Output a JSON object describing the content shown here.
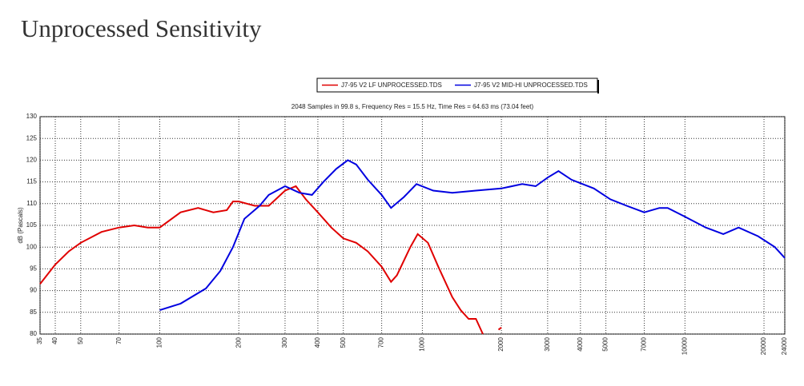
{
  "page_title": "Unprocessed  Sensitivity",
  "chart_data": {
    "type": "line",
    "subtitle": "2048 Samples in 99.8 s, Frequency Res = 15.5 Hz, Time Res = 64.63 ms (73.04 feet)",
    "y_label": "dB (Pascals)",
    "x_scale": "log",
    "grid": true,
    "legend": "top",
    "xlim": [
      35,
      24000
    ],
    "xticks": [
      35,
      40,
      50,
      70,
      100,
      200,
      300,
      400,
      500,
      700,
      1000,
      2000,
      3000,
      4000,
      5000,
      7000,
      10000,
      20000,
      24000
    ],
    "ylim": [
      80,
      130
    ],
    "yticks": [
      80,
      85,
      90,
      95,
      100,
      105,
      110,
      115,
      120,
      125,
      130
    ],
    "series": [
      {
        "name": "J7-95 V2 LF UNPROCESSED.TDS",
        "color": "#e00000",
        "x": [
          35,
          40,
          45,
          50,
          60,
          70,
          80,
          90,
          100,
          120,
          140,
          160,
          180,
          190,
          200,
          230,
          260,
          300,
          330,
          360,
          400,
          450,
          500,
          560,
          620,
          700,
          760,
          800,
          900,
          960,
          1050,
          1150,
          1300,
          1400,
          1500,
          1600,
          1700,
          1800,
          1950,
          2000
        ],
        "values": [
          91.5,
          96,
          99,
          101,
          103.5,
          104.5,
          105,
          104.5,
          104.5,
          108,
          109,
          108,
          108.5,
          110.5,
          110.5,
          109.5,
          109.5,
          113,
          114,
          111,
          108,
          104.5,
          102,
          101,
          99,
          95.5,
          92,
          93.5,
          100,
          103,
          101,
          95.5,
          88.5,
          85.5,
          83.5,
          83.5,
          80,
          null,
          81,
          81.5
        ]
      },
      {
        "name": "J7-95 V2 MID-HI UNPROCESSED.TDS",
        "color": "#0000e0",
        "x": [
          100,
          120,
          150,
          170,
          190,
          210,
          240,
          260,
          300,
          340,
          380,
          420,
          470,
          520,
          560,
          620,
          700,
          760,
          850,
          950,
          1100,
          1300,
          1600,
          2000,
          2400,
          2700,
          3000,
          3300,
          3700,
          4500,
          5200,
          6000,
          7000,
          8000,
          8600,
          10000,
          12000,
          14000,
          16000,
          19000,
          22000,
          24000
        ],
        "values": [
          85.5,
          87,
          90.5,
          94.5,
          100,
          106.5,
          109.5,
          112,
          114,
          112.5,
          112,
          115,
          118,
          120,
          119,
          115.5,
          112,
          109,
          111.5,
          114.5,
          113,
          112.5,
          113,
          113.5,
          114.5,
          114,
          116,
          117.5,
          115.5,
          113.5,
          111,
          109.5,
          108,
          109,
          109,
          107,
          104.5,
          103,
          104.5,
          102.5,
          100,
          97.5
        ]
      }
    ]
  }
}
